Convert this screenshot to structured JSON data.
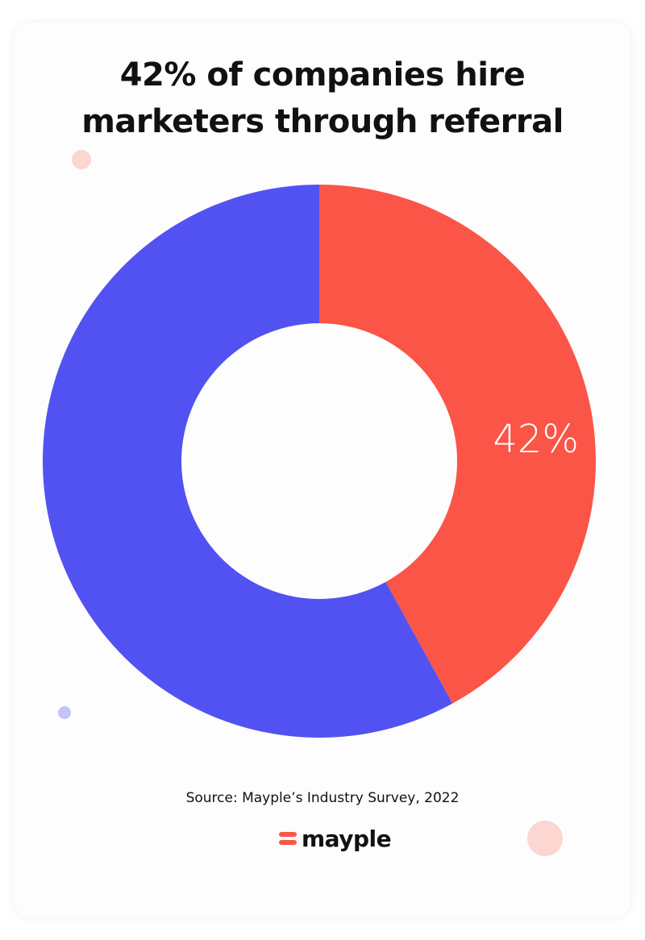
{
  "chart_data": {
    "type": "donut",
    "title": "42% of companies hire marketers through referral",
    "categories": [
      null,
      null
    ],
    "values": [
      42,
      58
    ],
    "value_labels": [
      "42%",
      null
    ],
    "colors": [
      "#fa5547",
      "#5252f2"
    ],
    "source": "Source: Mayple’s Industry Survey, 2022",
    "logo": "mayple"
  }
}
